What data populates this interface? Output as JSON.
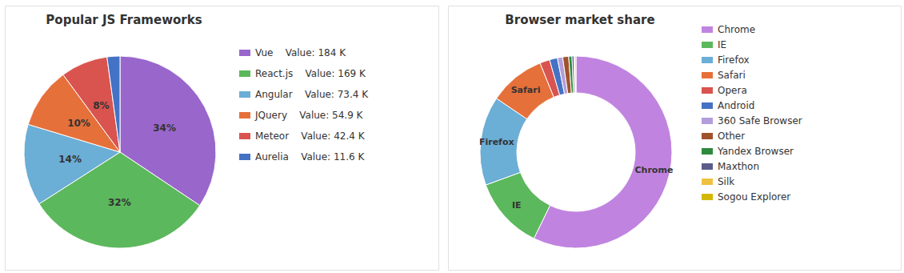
{
  "chart_data": [
    {
      "type": "pie",
      "title": "Popular JS Frameworks",
      "categories": [
        "Vue",
        "React.js",
        "Angular",
        "JQuery",
        "Meteor",
        "Aurelia"
      ],
      "values": [
        184,
        169,
        73.4,
        54.9,
        42.4,
        11.6
      ],
      "colors": [
        "#9966cc",
        "#5cb85c",
        "#6baed6",
        "#e6703a",
        "#d9534f",
        "#4472c4"
      ],
      "legend_labels": [
        "Vue    Value: 184 K",
        "React.js    Value: 169 K",
        "Angular    Value: 73.4 K",
        "JQuery    Value: 54.9 K",
        "Meteor    Value: 42.4 K",
        "Aurelia    Value: 11.6 K"
      ],
      "slice_labels": [
        {
          "value": 34,
          "label": "34%"
        },
        {
          "value": 32,
          "label": "32%"
        },
        {
          "value": 14,
          "label": "14%"
        },
        {
          "value": 10,
          "label": "10%"
        },
        {
          "value": 8,
          "label": "8%"
        },
        null
      ],
      "legend": "right"
    },
    {
      "type": "donut",
      "title": "Browser market share",
      "categories": [
        "Chrome",
        "IE",
        "Firefox",
        "Safari",
        "Opera",
        "Android",
        "360 Safe Browser",
        "Other",
        "Yandex Browser",
        "Maxthon",
        "Silk",
        "Sogou Explorer"
      ],
      "values": [
        51.5,
        11.0,
        13.5,
        8.5,
        1.5,
        1.2,
        0.8,
        0.9,
        0.5,
        0.3,
        0.15,
        0.15
      ],
      "colors": [
        "#c084e0",
        "#5cb85c",
        "#6baed6",
        "#e6703a",
        "#d9534f",
        "#4472c4",
        "#b39ddb",
        "#a0522d",
        "#2d8a3e",
        "#5c5c8a",
        "#f0c040",
        "#d4b800"
      ],
      "slice_labels": [
        "Chrome",
        "IE",
        "Firefox",
        "Safari"
      ],
      "legend": "right"
    }
  ]
}
